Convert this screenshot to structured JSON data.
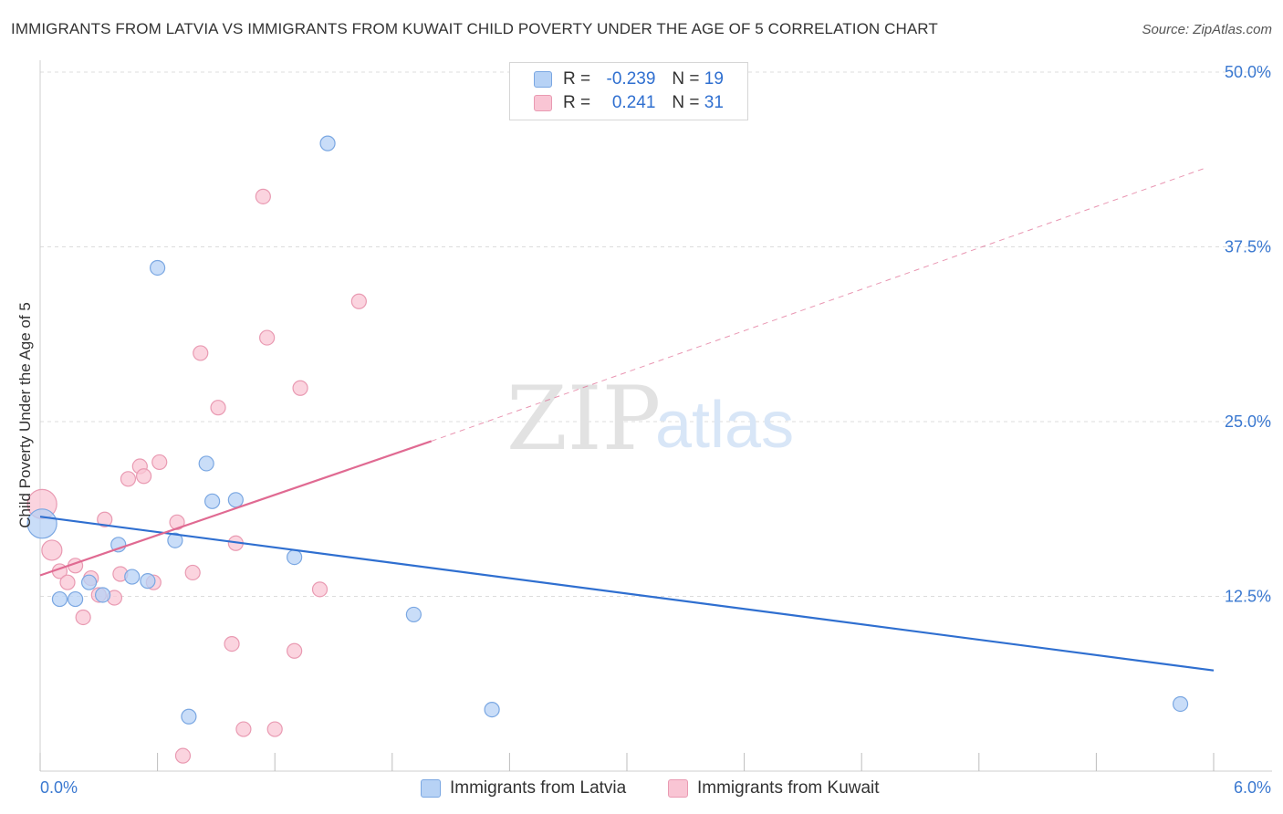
{
  "header": {
    "title": "IMMIGRANTS FROM LATVIA VS IMMIGRANTS FROM KUWAIT CHILD POVERTY UNDER THE AGE OF 5 CORRELATION CHART",
    "source": "Source: ZipAtlas.com"
  },
  "watermark": {
    "part1": "ZIP",
    "part2": "atlas"
  },
  "legend": {
    "latvia": {
      "r_label": "R =",
      "r_value": "-0.239",
      "n_label": "N =",
      "n_value": "19"
    },
    "kuwait": {
      "r_label": "R =",
      "r_value": "0.241",
      "n_label": "N =",
      "n_value": "31"
    }
  },
  "colors": {
    "latvia_fill": "#b7d2f5",
    "latvia_stroke": "#7aa7e2",
    "latvia_line": "#2f6fd0",
    "kuwait_fill": "#f9c5d4",
    "kuwait_stroke": "#e99ab2",
    "kuwait_line": "#e06a92",
    "axis_text": "#3a78d0"
  },
  "chart_data": {
    "type": "scatter",
    "title": "IMMIGRANTS FROM LATVIA VS IMMIGRANTS FROM KUWAIT CHILD POVERTY UNDER THE AGE OF 5 CORRELATION CHART",
    "xlabel": "",
    "ylabel": "Child Poverty Under the Age of 5",
    "xlim": [
      0,
      6
    ],
    "ylim": [
      0,
      50
    ],
    "x_tick_labels": [
      "0.0%",
      "6.0%"
    ],
    "y_ticks": [
      12.5,
      25.0,
      37.5,
      50.0
    ],
    "y_tick_labels": [
      "12.5%",
      "25.0%",
      "37.5%",
      "50.0%"
    ],
    "series": [
      {
        "name": "Immigrants from Latvia",
        "r": -0.239,
        "n": 19,
        "points": [
          {
            "x": 0.01,
            "y": 17.7,
            "size": "large"
          },
          {
            "x": 0.1,
            "y": 12.3
          },
          {
            "x": 0.18,
            "y": 12.3
          },
          {
            "x": 0.25,
            "y": 13.5
          },
          {
            "x": 0.32,
            "y": 12.6
          },
          {
            "x": 0.4,
            "y": 16.2
          },
          {
            "x": 0.47,
            "y": 13.9
          },
          {
            "x": 0.55,
            "y": 13.6
          },
          {
            "x": 0.6,
            "y": 36.0
          },
          {
            "x": 0.69,
            "y": 16.5
          },
          {
            "x": 0.76,
            "y": 3.9
          },
          {
            "x": 0.85,
            "y": 22.0
          },
          {
            "x": 0.88,
            "y": 19.3
          },
          {
            "x": 1.0,
            "y": 19.4
          },
          {
            "x": 1.3,
            "y": 15.3
          },
          {
            "x": 1.47,
            "y": 44.9
          },
          {
            "x": 1.91,
            "y": 11.2
          },
          {
            "x": 2.31,
            "y": 4.4
          },
          {
            "x": 5.83,
            "y": 4.8
          }
        ],
        "trend": {
          "x0": 0.0,
          "y0": 18.2,
          "x1": 6.0,
          "y1": 7.2
        }
      },
      {
        "name": "Immigrants from Kuwait",
        "r": 0.241,
        "n": 31,
        "points": [
          {
            "x": 0.01,
            "y": 19.1,
            "size": "large"
          },
          {
            "x": 0.06,
            "y": 15.8
          },
          {
            "x": 0.1,
            "y": 14.3
          },
          {
            "x": 0.14,
            "y": 13.5
          },
          {
            "x": 0.18,
            "y": 14.7
          },
          {
            "x": 0.22,
            "y": 11.0
          },
          {
            "x": 0.26,
            "y": 13.8
          },
          {
            "x": 0.3,
            "y": 12.6
          },
          {
            "x": 0.33,
            "y": 18.0
          },
          {
            "x": 0.38,
            "y": 12.4
          },
          {
            "x": 0.41,
            "y": 14.1
          },
          {
            "x": 0.45,
            "y": 20.9
          },
          {
            "x": 0.51,
            "y": 21.8
          },
          {
            "x": 0.53,
            "y": 21.1
          },
          {
            "x": 0.58,
            "y": 13.5
          },
          {
            "x": 0.61,
            "y": 22.1
          },
          {
            "x": 0.7,
            "y": 17.8
          },
          {
            "x": 0.73,
            "y": 1.1
          },
          {
            "x": 0.78,
            "y": 14.2
          },
          {
            "x": 0.82,
            "y": 29.9
          },
          {
            "x": 0.91,
            "y": 26.0
          },
          {
            "x": 0.98,
            "y": 9.1
          },
          {
            "x": 1.0,
            "y": 16.3
          },
          {
            "x": 1.04,
            "y": 3.0
          },
          {
            "x": 1.14,
            "y": 41.1
          },
          {
            "x": 1.16,
            "y": 31.0
          },
          {
            "x": 1.2,
            "y": 3.0
          },
          {
            "x": 1.3,
            "y": 8.6
          },
          {
            "x": 1.33,
            "y": 27.4
          },
          {
            "x": 1.43,
            "y": 13.0
          },
          {
            "x": 1.63,
            "y": 33.6
          }
        ],
        "trend": {
          "x0": 0.0,
          "y0": 14.0,
          "x1": 2.0,
          "y1": 23.6
        },
        "trend_extension": {
          "x0": 2.0,
          "y0": 23.6,
          "x1": 5.95,
          "y1": 43.1
        }
      }
    ]
  }
}
